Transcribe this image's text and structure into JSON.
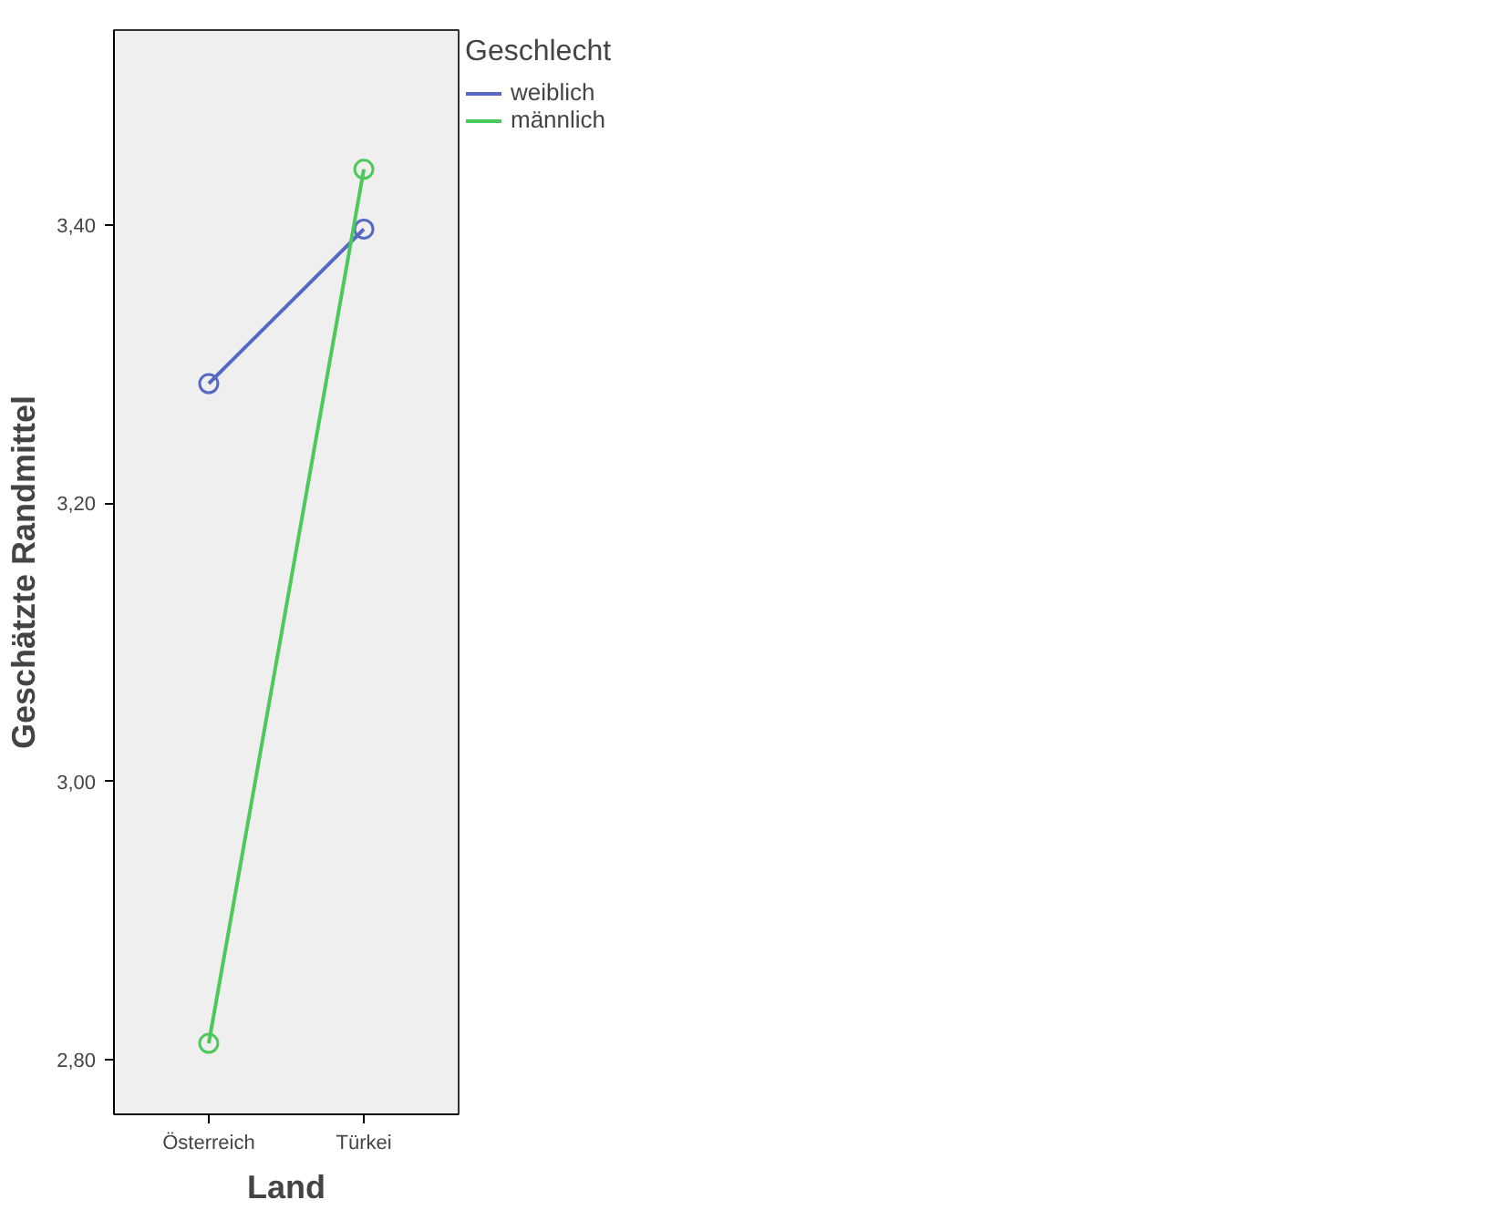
{
  "chart_data": {
    "type": "line",
    "xlabel": "Land",
    "ylabel": "Geschätzte Randmittel",
    "legend_title": "Geschlecht",
    "categories": [
      "Österreich",
      "Türkei"
    ],
    "series": [
      {
        "name": "weiblich",
        "color": "#5468c4",
        "values": [
          3.286,
          3.397
        ]
      },
      {
        "name": "männlich",
        "color": "#4cc95a",
        "values": [
          2.812,
          3.44
        ]
      }
    ],
    "ylim": [
      2.761,
      3.54
    ],
    "yticks": [
      {
        "value": 2.8,
        "label": "2,80"
      },
      {
        "value": 3.0,
        "label": "3,00"
      },
      {
        "value": 3.2,
        "label": "3,20"
      },
      {
        "value": 3.4,
        "label": "3,40"
      }
    ],
    "grid": false,
    "legend": "top right",
    "marker": "circle",
    "line_style": "solid"
  }
}
